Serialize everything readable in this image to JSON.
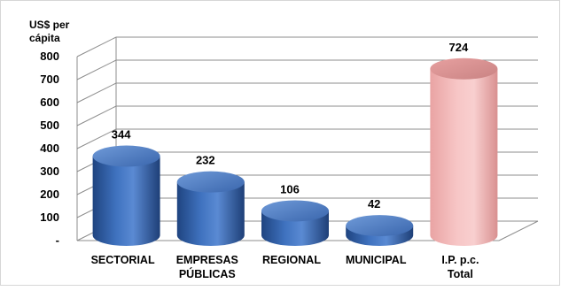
{
  "chart_data": {
    "type": "bar",
    "style": "3d-cylinder",
    "ylabel": "US$ per cápita",
    "ylim": [
      0,
      800
    ],
    "yticks": [
      "-",
      "100",
      "200",
      "300",
      "400",
      "500",
      "600",
      "700",
      "800"
    ],
    "grid": true,
    "categories": [
      [
        "SECTORIAL"
      ],
      [
        "EMPRESAS",
        "PÚBLICAS"
      ],
      [
        "REGIONAL"
      ],
      [
        "MUNICIPAL"
      ],
      [
        "I.P. p.c.",
        "Total"
      ]
    ],
    "values": [
      344,
      232,
      106,
      42,
      724
    ],
    "value_labels": [
      "344",
      "232",
      "106",
      "42",
      "724"
    ],
    "bar_colors": [
      "#3E6FB8",
      "#3E6FB8",
      "#3E6FB8",
      "#3E6FB8",
      "#F2B8B8"
    ],
    "colors": {
      "blue_bar": "#3E6FB8",
      "total_bar": "#F2B8B8",
      "grid": "#8C8C8C"
    }
  }
}
